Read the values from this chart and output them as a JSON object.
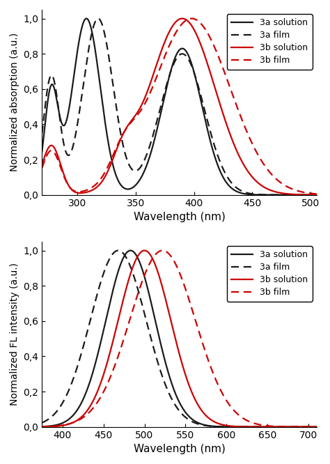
{
  "top_panel": {
    "xlabel": "Wavelength (nm)",
    "ylabel": "Normalized absorption (a.u.)",
    "xlim": [
      270,
      505
    ],
    "ylim": [
      0.0,
      1.05
    ],
    "xticks": [
      300,
      350,
      400,
      450,
      500
    ],
    "yticks": [
      0.0,
      0.2,
      0.4,
      0.6,
      0.8,
      1.0
    ],
    "ytick_labels": [
      "0,0",
      "0,2",
      "0,4",
      "0,6",
      "0,8",
      "1,0"
    ]
  },
  "bottom_panel": {
    "xlabel": "Wavelength (nm)",
    "ylabel": "Normalized FL intensity (a.u.)",
    "xlim": [
      375,
      710
    ],
    "ylim": [
      0.0,
      1.05
    ],
    "xticks": [
      400,
      450,
      500,
      550,
      600,
      650,
      700
    ],
    "yticks": [
      0.0,
      0.2,
      0.4,
      0.6,
      0.8,
      1.0
    ],
    "ytick_labels": [
      "0,0",
      "0,2",
      "0,4",
      "0,6",
      "0,8",
      "1,0"
    ]
  },
  "colors": {
    "black": "#1a1a1a",
    "red": "#cc0000"
  },
  "top_3a_sol": {
    "peaks": [
      {
        "mu": 308,
        "sigma": 12,
        "amp": 1.0
      },
      {
        "mu": 390,
        "sigma": 17,
        "amp": 0.83
      },
      {
        "mu": 278,
        "sigma": 6,
        "amp": 0.58
      }
    ]
  },
  "top_3a_film": {
    "peaks": [
      {
        "mu": 318,
        "sigma": 13,
        "amp": 1.0
      },
      {
        "mu": 390,
        "sigma": 19,
        "amp": 0.8
      },
      {
        "mu": 278,
        "sigma": 7,
        "amp": 0.67
      }
    ]
  },
  "top_3b_sol": {
    "peaks": [
      {
        "mu": 390,
        "sigma": 28,
        "amp": 1.0
      },
      {
        "mu": 340,
        "sigma": 10,
        "amp": 0.15
      },
      {
        "mu": 278,
        "sigma": 8,
        "amp": 0.28
      }
    ]
  },
  "top_3b_film": {
    "peaks": [
      {
        "mu": 398,
        "sigma": 33,
        "amp": 1.0
      },
      {
        "mu": 340,
        "sigma": 11,
        "amp": 0.14
      },
      {
        "mu": 278,
        "sigma": 8,
        "amp": 0.25
      }
    ]
  },
  "bot_3a_sol": {
    "mu": 483,
    "sigma": 30,
    "amp": 1.0
  },
  "bot_3a_film": {
    "mu": 468,
    "sigma": 34,
    "amp": 1.0
  },
  "bot_3b_sol": {
    "mu": 500,
    "sigma": 32,
    "amp": 1.0
  },
  "bot_3b_film": {
    "mu": 522,
    "sigma": 40,
    "amp": 1.0
  }
}
